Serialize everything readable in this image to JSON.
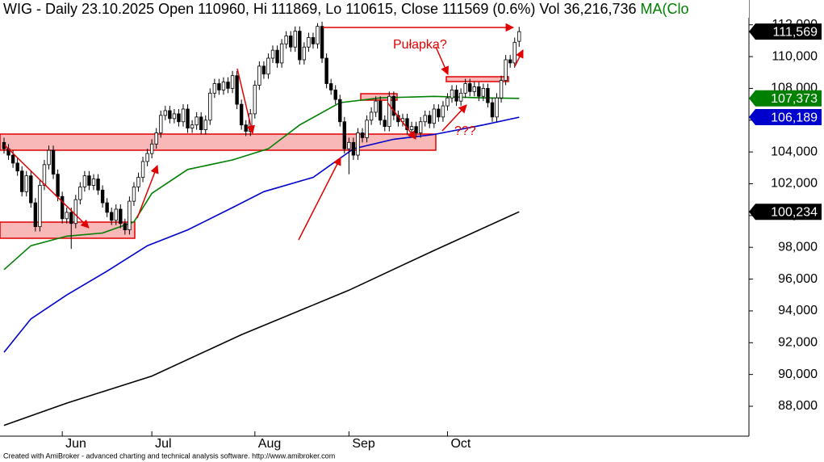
{
  "chart_data": {
    "type": "candlestick",
    "title": "WIG - Daily 23.10.2025 Open 110960, Hi 111869, Lo 110615, Close 111569 (0.6%) Vol 36,216,736",
    "ma_label": "MA(Clo",
    "footer": "Created with AmiBroker - advanced charting and technical analysis software. http://www.amibroker.com",
    "annotations": [
      "Pułapka?",
      "???"
    ],
    "xlim": [
      -0.9,
      166.3
    ],
    "xticks": [
      {
        "value": 13,
        "label": "Jun"
      },
      {
        "value": 33,
        "label": "Jul"
      },
      {
        "value": 56,
        "label": "Aug"
      },
      {
        "value": 77,
        "label": "Sep"
      },
      {
        "value": 99,
        "label": "Oct"
      }
    ],
    "ylim": [
      86120,
      113560
    ],
    "yticks": [
      {
        "value": 88000,
        "label": "88,000"
      },
      {
        "value": 90000,
        "label": "90,000"
      },
      {
        "value": 92000,
        "label": "92,000"
      },
      {
        "value": 94000,
        "label": "94,000"
      },
      {
        "value": 96000,
        "label": "96,000"
      },
      {
        "value": 98000,
        "label": "98,000"
      },
      {
        "value": 100000,
        "label": "100,000"
      },
      {
        "value": 102000,
        "label": "102,000"
      },
      {
        "value": 104000,
        "label": "104,000"
      },
      {
        "value": 106000,
        "label": "106,000"
      },
      {
        "value": 108000,
        "label": "108,000"
      },
      {
        "value": 110000,
        "label": "110,000"
      },
      {
        "value": 112000,
        "label": "112,000"
      }
    ],
    "up_color": "#ffffff",
    "down_color": "#000000",
    "x": [
      0,
      1,
      2,
      3,
      4,
      5,
      6,
      7,
      8,
      9,
      10,
      11,
      12,
      13,
      14,
      15,
      16,
      17,
      18,
      19,
      20,
      21,
      22,
      23,
      24,
      25,
      26,
      27,
      28,
      29,
      30,
      31,
      32,
      33,
      34,
      35,
      36,
      37,
      38,
      39,
      40,
      41,
      42,
      43,
      44,
      45,
      46,
      47,
      48,
      49,
      50,
      51,
      52,
      53,
      54,
      55,
      56,
      57,
      58,
      59,
      60,
      61,
      62,
      63,
      64,
      65,
      66,
      67,
      68,
      69,
      70,
      71,
      72,
      73,
      74,
      75,
      76,
      77,
      78,
      79,
      80,
      81,
      82,
      83,
      84,
      85,
      86,
      87,
      88,
      89,
      90,
      91,
      92,
      93,
      94,
      95,
      96,
      97,
      98,
      99,
      100,
      101,
      102,
      103,
      104,
      105,
      106,
      107,
      108,
      109,
      110,
      111,
      112,
      113,
      114,
      115
    ],
    "open": [
      104600,
      104200,
      103800,
      103300,
      102800,
      101500,
      102500,
      100800,
      99300,
      101900,
      103200,
      104100,
      102600,
      101200,
      99800,
      100200,
      99500,
      101000,
      101800,
      102500,
      101900,
      102300,
      101600,
      100800,
      100200,
      99700,
      100400,
      99500,
      99100,
      100900,
      101800,
      102400,
      103400,
      103900,
      104500,
      105200,
      106300,
      106600,
      106100,
      106400,
      105900,
      106700,
      105500,
      105700,
      106200,
      105400,
      106000,
      107700,
      108300,
      107900,
      108400,
      108000,
      108800,
      107000,
      105700,
      105300,
      106400,
      108200,
      109400,
      108900,
      109900,
      110400,
      109600,
      110800,
      111300,
      110600,
      111600,
      109800,
      110600,
      111200,
      110800,
      111900,
      109900,
      108300,
      107900,
      107300,
      105900,
      104200,
      104600,
      103800,
      105200,
      104900,
      106000,
      106500,
      107200,
      106000,
      105600,
      107500,
      106300,
      105900,
      106100,
      105400,
      105600,
      105200,
      105900,
      106300,
      105800,
      106700,
      106200,
      106900,
      107400,
      107900,
      107200,
      107700,
      108300,
      107800,
      108100,
      107500,
      108000,
      107100,
      106200,
      107400,
      108500,
      109800,
      109600,
      110960
    ],
    "high": [
      104900,
      104500,
      104100,
      103600,
      103100,
      102800,
      102800,
      101100,
      102200,
      103500,
      104400,
      104400,
      102900,
      101500,
      100500,
      100500,
      101300,
      102100,
      102800,
      102800,
      102600,
      102600,
      101900,
      101100,
      100500,
      100700,
      100700,
      99800,
      101200,
      102100,
      102700,
      103700,
      104200,
      104800,
      105500,
      106600,
      106900,
      106900,
      106700,
      106700,
      107000,
      107000,
      106000,
      106500,
      106500,
      106300,
      108000,
      108600,
      108600,
      108700,
      108700,
      109100,
      109100,
      107300,
      106000,
      106700,
      108500,
      109700,
      109700,
      110200,
      110700,
      110700,
      111100,
      111600,
      111600,
      111900,
      111900,
      110900,
      111500,
      111500,
      112100,
      112200,
      110200,
      108600,
      108200,
      107600,
      106200,
      104900,
      104900,
      105500,
      105500,
      106300,
      106800,
      107500,
      107500,
      106300,
      107800,
      107800,
      106600,
      106400,
      106400,
      105900,
      105900,
      106200,
      106600,
      106600,
      107000,
      107000,
      107200,
      107700,
      108200,
      108200,
      108000,
      108600,
      108600,
      108400,
      108400,
      108300,
      108300,
      107400,
      107700,
      108800,
      110100,
      110100,
      111200,
      111869
    ],
    "low": [
      103900,
      103500,
      103000,
      102500,
      101200,
      101200,
      100500,
      99000,
      99000,
      101600,
      102900,
      102300,
      100900,
      99500,
      99500,
      97900,
      99200,
      100700,
      101500,
      101600,
      101600,
      101300,
      100500,
      99900,
      99400,
      99400,
      99200,
      98800,
      98800,
      100600,
      101500,
      102100,
      103100,
      103600,
      104200,
      104900,
      106000,
      105800,
      105800,
      105600,
      105600,
      105200,
      105200,
      105400,
      105100,
      105100,
      105700,
      107400,
      107600,
      107600,
      107700,
      107700,
      106700,
      105400,
      105000,
      105000,
      106100,
      107900,
      108600,
      108600,
      109600,
      109300,
      109300,
      110500,
      110300,
      110300,
      109500,
      109500,
      110300,
      110500,
      110500,
      109600,
      108000,
      107600,
      107000,
      105600,
      103900,
      102600,
      103500,
      103500,
      104600,
      104600,
      105700,
      106200,
      105700,
      105300,
      105300,
      106000,
      105600,
      105600,
      105100,
      105100,
      104900,
      104900,
      105600,
      105500,
      105500,
      105900,
      105900,
      106600,
      107100,
      106900,
      106900,
      107400,
      107500,
      107500,
      107200,
      107200,
      106800,
      105900,
      105900,
      107100,
      108200,
      109300,
      109300,
      110615
    ],
    "close": [
      104200,
      103800,
      103300,
      102800,
      101500,
      102500,
      100800,
      99300,
      101900,
      103200,
      104100,
      102600,
      101200,
      99800,
      100200,
      99500,
      101000,
      101800,
      102500,
      101900,
      102300,
      101600,
      100800,
      100200,
      99700,
      100400,
      99500,
      99100,
      100900,
      101800,
      102400,
      103400,
      103900,
      104500,
      105200,
      106300,
      106600,
      106100,
      106400,
      105900,
      106700,
      105500,
      105700,
      106200,
      105400,
      106000,
      107700,
      108300,
      107900,
      108400,
      108000,
      108800,
      107000,
      105700,
      105300,
      106400,
      108200,
      109400,
      108900,
      109900,
      110400,
      109600,
      110800,
      111300,
      110600,
      111600,
      109800,
      110600,
      111200,
      110800,
      111900,
      109900,
      108300,
      107900,
      107300,
      105900,
      104200,
      104600,
      103800,
      105200,
      104900,
      106000,
      106500,
      107200,
      106000,
      105600,
      107500,
      106300,
      105900,
      106100,
      105400,
      105600,
      105200,
      105900,
      106300,
      105800,
      106700,
      106200,
      106900,
      107400,
      107900,
      107200,
      107700,
      108300,
      107800,
      108100,
      107500,
      108000,
      107100,
      106200,
      107400,
      108500,
      109800,
      109600,
      110900,
      111569
    ],
    "close_last_label": "111,569",
    "series": [
      {
        "color": "#008000",
        "x": [
          0,
          6,
          14,
          22,
          29,
          33,
          41,
          51,
          59,
          66,
          75,
          84,
          96,
          107,
          115
        ],
        "values": [
          96600,
          98100,
          98700,
          98900,
          99600,
          101400,
          102900,
          103500,
          104200,
          105700,
          107100,
          107400,
          107500,
          107400,
          107373
        ],
        "last_label": "107,373"
      },
      {
        "color": "#0000cc",
        "x": [
          0,
          6,
          14,
          23,
          32,
          41,
          51,
          58,
          69,
          78,
          87,
          96,
          107,
          115
        ],
        "values": [
          91400,
          93500,
          95000,
          96500,
          98100,
          99100,
          100500,
          101500,
          102400,
          104200,
          104800,
          105100,
          105700,
          106189
        ],
        "last_label": "106,189"
      },
      {
        "color": "#000000",
        "x": [
          0,
          14,
          33,
          53,
          77,
          96,
          115
        ],
        "values": [
          86800,
          88200,
          89900,
          92500,
          95300,
          97800,
          100234
        ],
        "last_label": "100,234"
      }
    ]
  }
}
